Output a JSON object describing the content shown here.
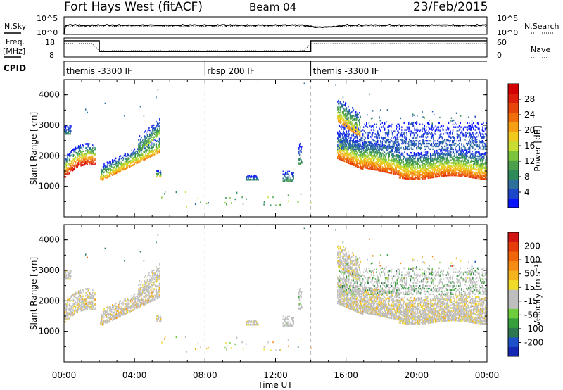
{
  "header": {
    "station": "Fort Hays West (fitACF)",
    "beam": "Beam 04",
    "date": "23/Feb/2015"
  },
  "status": {
    "nsky_label": "N.Sky",
    "nsky_ticks": [
      "10^5",
      "10^0"
    ],
    "nsearch_label": "N.Search",
    "nsearch_ticks": [
      "10^5",
      "10^0"
    ],
    "freq_label": "Freq.",
    "freq_unit": "[MHz]",
    "freq_ticks": [
      "18",
      "8"
    ],
    "nave_label": "Nave",
    "nave_ticks": [
      "60",
      "0"
    ],
    "cpid_label": "CPID",
    "cpid_segments": [
      {
        "label": "themis -3300 IF",
        "start_h": 0,
        "end_h": 8
      },
      {
        "label": "rbsp 200 IF",
        "start_h": 8,
        "end_h": 14
      },
      {
        "label": "themis -3300 IF",
        "start_h": 14,
        "end_h": 24
      }
    ],
    "freq_mhz": [
      {
        "t_h": 0,
        "f": 17
      },
      {
        "t_h": 2,
        "f": 17
      },
      {
        "t_h": 2,
        "f": 11
      },
      {
        "t_h": 14,
        "f": 11
      },
      {
        "t_h": 14,
        "f": 17
      },
      {
        "t_h": 24,
        "f": 17
      }
    ]
  },
  "chart_data": [
    {
      "type": "heatmap",
      "panel": "power",
      "ylabel": "Slant Range [km]",
      "ylim": [
        0,
        4500
      ],
      "yticks": [
        1000,
        2000,
        3000,
        4000
      ],
      "xlim_h": [
        0,
        24
      ],
      "colorbar": {
        "label": "Power [dB]",
        "range": [
          0,
          32
        ],
        "ticks": [
          "4",
          "8",
          "12",
          "16",
          "20",
          "24",
          "28"
        ],
        "colors": [
          "#0a14ff",
          "#1e46c8",
          "#2d6e9b",
          "#2f8a5a",
          "#4ca04b",
          "#7cc43b",
          "#c8dc32",
          "#f0c81e",
          "#f5a014",
          "#f06e0a",
          "#e6460a",
          "#dc1e0a",
          "#d20000"
        ]
      }
    },
    {
      "type": "heatmap",
      "panel": "velocity",
      "ylabel": "Slant Range [km]",
      "ylim": [
        0,
        4500
      ],
      "yticks": [
        1000,
        2000,
        3000,
        4000
      ],
      "xlim_h": [
        0,
        24
      ],
      "colorbar": {
        "label": "Velocity [m s⁻¹]",
        "range": [
          -250,
          250
        ],
        "ticks": [
          "200",
          "100",
          "50",
          "15",
          "-15",
          "-50",
          "-100",
          "-200"
        ],
        "colors": [
          "#1428b4",
          "#1e50c8",
          "#2d7850",
          "#37a03c",
          "#6ecd3c",
          "#bebebe",
          "#bebebe",
          "#f0dc28",
          "#f5b41e",
          "#f58c14",
          "#f0640a",
          "#e63c0a",
          "#d21414"
        ]
      }
    }
  ],
  "xaxis": {
    "title": "Time UT",
    "ticks": [
      {
        "h": 0,
        "label": "00:00"
      },
      {
        "h": 4,
        "label": "04:00"
      },
      {
        "h": 8,
        "label": "08:00"
      },
      {
        "h": 12,
        "label": "12:00"
      },
      {
        "h": 16,
        "label": "16:00"
      },
      {
        "h": 20,
        "label": "20:00"
      },
      {
        "h": 24,
        "label": "00:00"
      }
    ],
    "dashed_markers_h": [
      8,
      14
    ]
  }
}
